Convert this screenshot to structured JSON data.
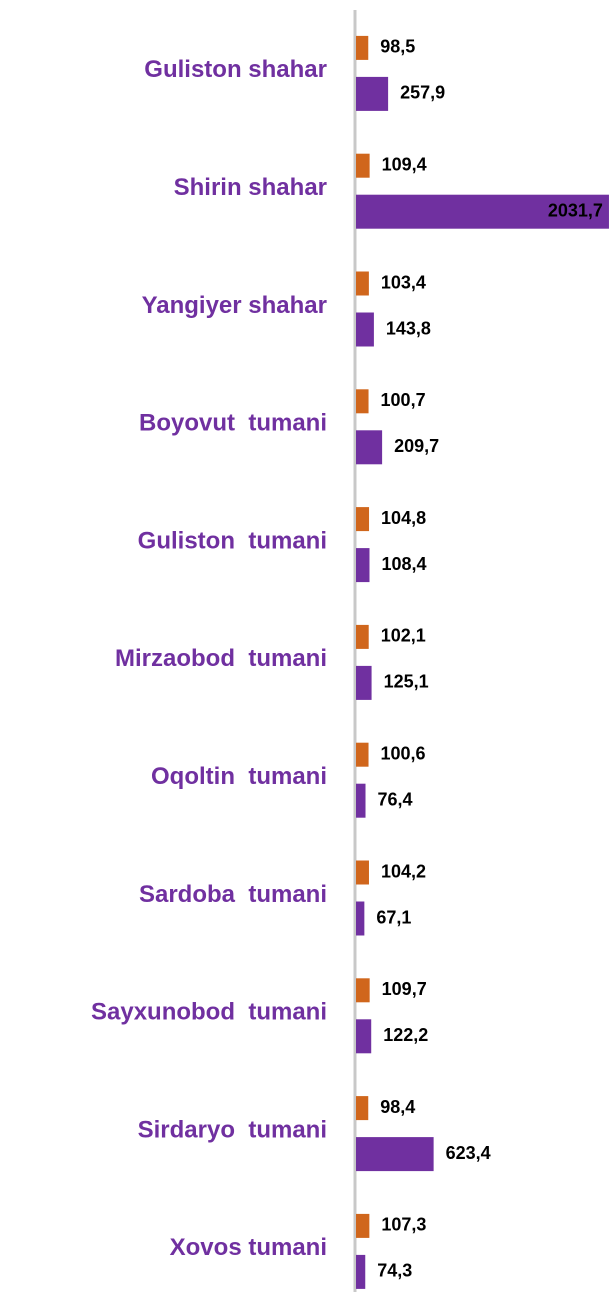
{
  "chart_data": {
    "type": "barh",
    "categories": [
      "Guliston shahar",
      "Shirin shahar",
      "Yangiyer shahar",
      "Boyovut  tumani",
      "Guliston  tumani",
      "Mirzaobod  tumani",
      "Oqoltin  tumani",
      "Sardoba  tumani",
      "Sayxunobod  tumani",
      "Sirdaryo  tumani",
      "Xovos tumani"
    ],
    "series": [
      {
        "color": "#d0661c",
        "values": [
          98.5,
          109.4,
          103.4,
          100.7,
          104.8,
          102.1,
          100.6,
          104.2,
          109.7,
          98.4,
          107.3
        ],
        "value_labels": [
          "98,5",
          "109,4",
          "103,4",
          "100,7",
          "104,8",
          "102,1",
          "100,6",
          "104,2",
          "109,7",
          "98,4",
          "107,3"
        ]
      },
      {
        "color": "#7030a0",
        "values": [
          257.9,
          2031.7,
          143.8,
          209.7,
          108.4,
          125.1,
          76.4,
          67.1,
          122.2,
          623.4,
          74.3
        ],
        "value_labels": [
          "257,9",
          "2031,7",
          "143,8",
          "209,7",
          "108,4",
          "125,1",
          "76,4",
          "67,1",
          "122,2",
          "623,4",
          "74,3"
        ]
      }
    ],
    "xlim": [
      0,
      2040
    ]
  }
}
